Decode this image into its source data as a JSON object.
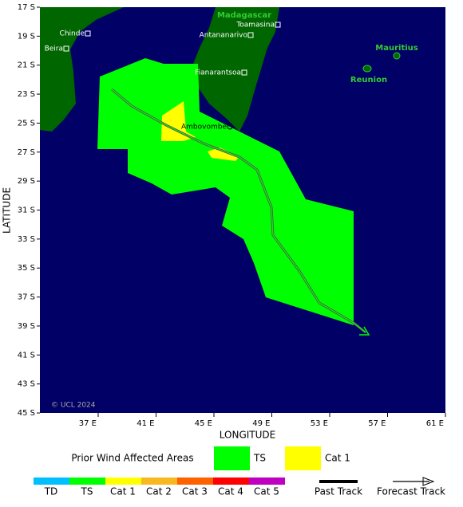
{
  "map": {
    "lat_labels": [
      "17 S",
      "19 S",
      "21 S",
      "23 S",
      "25 S",
      "27 S",
      "29 S",
      "31 S",
      "33 S",
      "35 S",
      "37 S",
      "39 S",
      "41 S",
      "43 S",
      "45 S"
    ],
    "lon_labels": [
      "37 E",
      "41 E",
      "45 E",
      "49 E",
      "53 E",
      "57 E",
      "61 E"
    ],
    "x_axis_title": "LONGITUDE",
    "y_axis_title": "LATITUDE",
    "places": [
      "Madagascar",
      "Toamasina",
      "Antananarivo",
      "Fianarantsoa",
      "Ambovombe",
      "Chinde",
      "Beira",
      "Mauritius",
      "Reunion"
    ],
    "copyright": "© UCL 2024"
  },
  "legend": {
    "title": "Prior Wind Affected Areas",
    "areas": [
      "TS",
      "Cat 1"
    ],
    "scale": [
      "TD",
      "TS",
      "Cat 1",
      "Cat 2",
      "Cat 3",
      "Cat 4",
      "Cat 5"
    ],
    "tracks": [
      "Past Track",
      "Forecast Track"
    ]
  }
}
